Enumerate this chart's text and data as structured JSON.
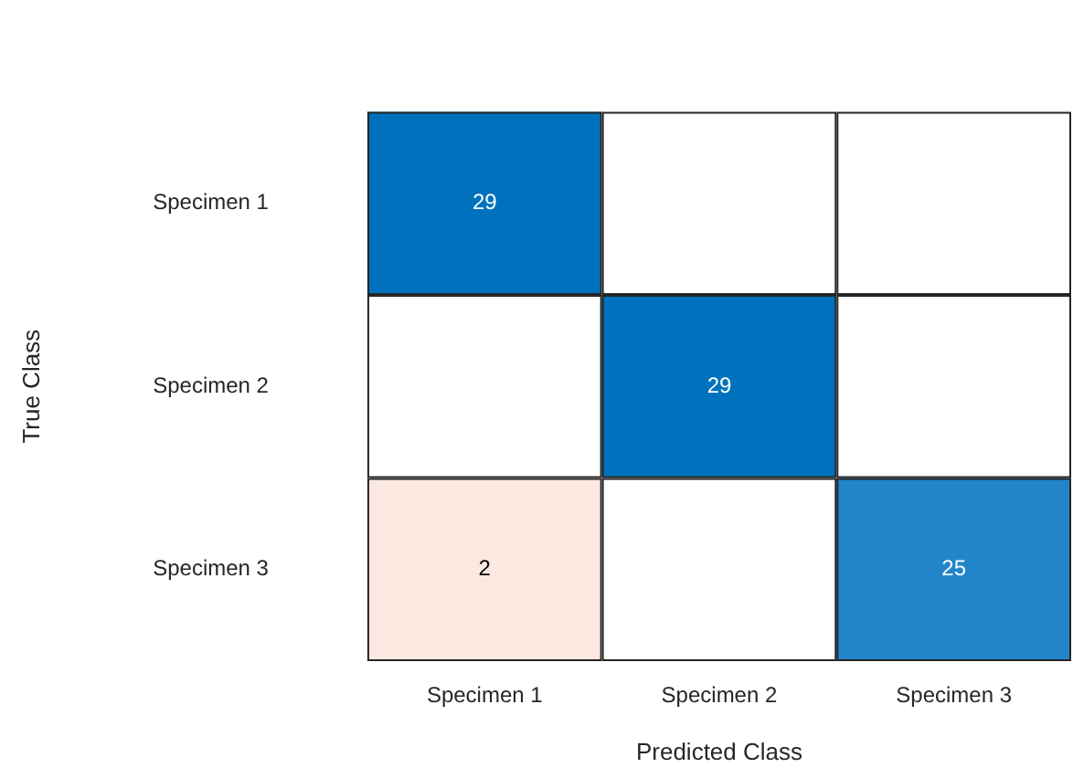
{
  "chart_data": {
    "type": "heatmap",
    "xlabel": "Predicted Class",
    "ylabel": "True Class",
    "categories": [
      "Specimen 1",
      "Specimen 2",
      "Specimen 3"
    ],
    "y_categories": [
      "Specimen 1",
      "Specimen 2",
      "Specimen 3"
    ],
    "cells": [
      [
        29,
        null,
        null
      ],
      [
        null,
        29,
        null
      ],
      [
        2,
        null,
        25
      ]
    ],
    "colors": [
      [
        "#0072bd",
        null,
        null
      ],
      [
        null,
        "#0072bd",
        null
      ],
      [
        "#fbe9e1",
        null,
        "#2385c9"
      ]
    ],
    "data_labels": true
  }
}
